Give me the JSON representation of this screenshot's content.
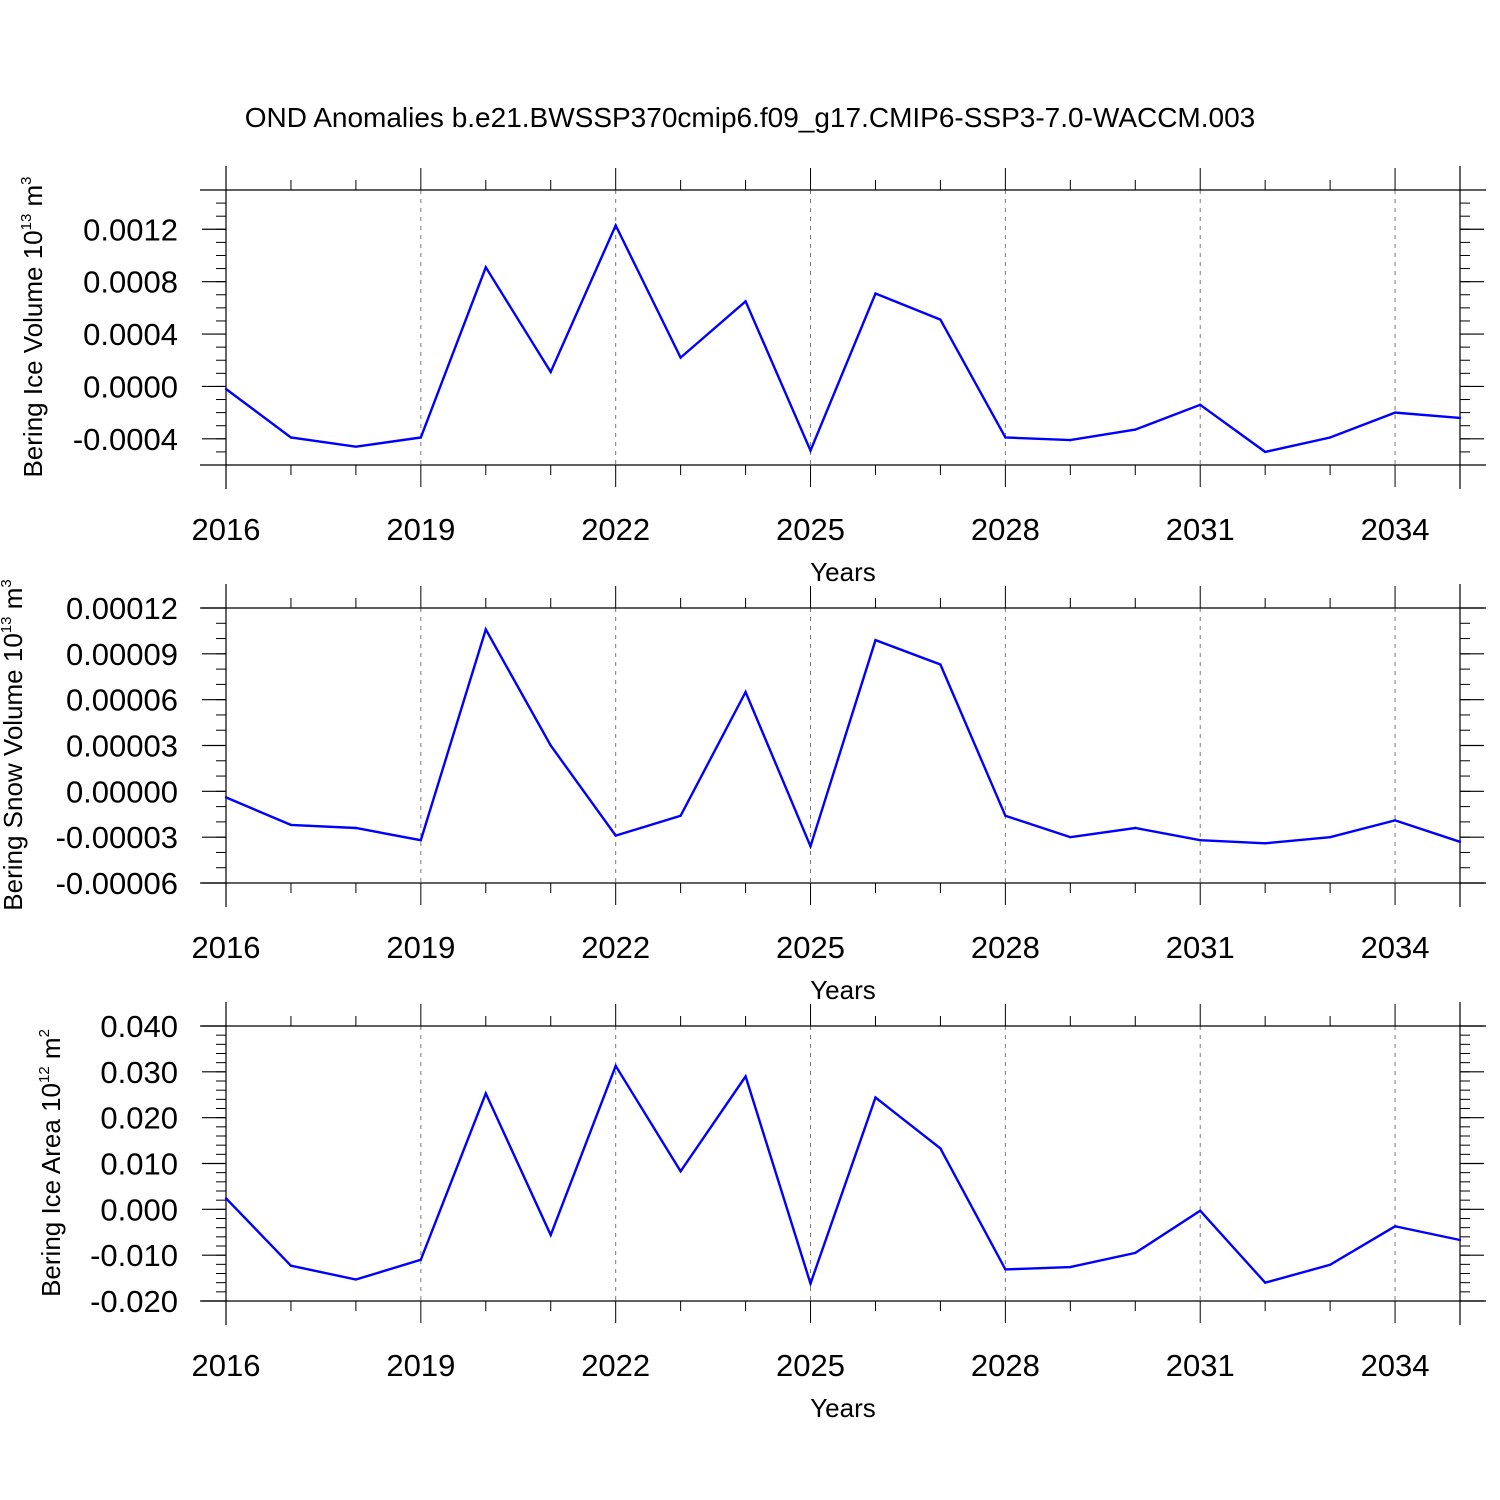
{
  "title": "OND Anomalies b.e21.BWSSP370cmip6.f09_g17.CMIP6-SSP3-7.0-WACCM.003",
  "chart_data": [
    {
      "type": "line",
      "ylabel": "Bering Ice Volume 10",
      "ylabel_exp": "13",
      "ylabel_unit": " m",
      "ylabel_unit_exp": "3",
      "xlabel": "Years",
      "xlim": [
        2016,
        2035
      ],
      "ylim": [
        -0.0006,
        0.0015
      ],
      "yticks": [
        -0.0004,
        0,
        0.0004,
        0.0008,
        0.0012
      ],
      "ytick_labels": [
        "-0.0004",
        "0.0000",
        "0.0004",
        "0.0008",
        "0.0012"
      ],
      "yminor_step": 0.0001,
      "xticks": [
        2016,
        2019,
        2022,
        2025,
        2028,
        2031,
        2034
      ],
      "xtick_labels": [
        "2016",
        "2019",
        "2022",
        "2025",
        "2028",
        "2031",
        "2034"
      ],
      "grid": "vertical dashed at major x ticks",
      "color": "#0000ff",
      "x": [
        2016,
        2017,
        2018,
        2019,
        2020,
        2021,
        2022,
        2023,
        2024,
        2025,
        2026,
        2027,
        2028,
        2029,
        2030,
        2031,
        2032,
        2033,
        2034,
        2035
      ],
      "values": [
        -2e-05,
        -0.00039,
        -0.00046,
        -0.00039,
        0.00091,
        0.00011,
        0.00123,
        0.00022,
        0.00065,
        -0.00049,
        0.00071,
        0.00051,
        -0.00039,
        -0.00041,
        -0.00033,
        -0.00014,
        -0.0005,
        -0.00039,
        -0.0002,
        -0.00024
      ]
    },
    {
      "type": "line",
      "ylabel": "Bering Snow Volume 10",
      "ylabel_exp": "13",
      "ylabel_unit": " m",
      "ylabel_unit_exp": "3",
      "xlabel": "Years",
      "xlim": [
        2016,
        2035
      ],
      "ylim": [
        -6e-05,
        0.00012
      ],
      "yticks": [
        -6e-05,
        -3e-05,
        0,
        3e-05,
        6e-05,
        9e-05,
        0.00012
      ],
      "ytick_labels": [
        "-0.00006",
        "-0.00003",
        "0.00000",
        "0.00003",
        "0.00006",
        "0.00009",
        "0.00012"
      ],
      "yminor_step": 1e-05,
      "xticks": [
        2016,
        2019,
        2022,
        2025,
        2028,
        2031,
        2034
      ],
      "xtick_labels": [
        "2016",
        "2019",
        "2022",
        "2025",
        "2028",
        "2031",
        "2034"
      ],
      "grid": "vertical dashed at major x ticks",
      "color": "#0000ff",
      "x": [
        2016,
        2017,
        2018,
        2019,
        2020,
        2021,
        2022,
        2023,
        2024,
        2025,
        2026,
        2027,
        2028,
        2029,
        2030,
        2031,
        2032,
        2033,
        2034,
        2035
      ],
      "values": [
        -4e-06,
        -2.2e-05,
        -2.4e-05,
        -3.2e-05,
        0.000106,
        3e-05,
        -2.9e-05,
        -1.6e-05,
        6.5e-05,
        -3.6e-05,
        9.9e-05,
        8.3e-05,
        -1.6e-05,
        -3e-05,
        -2.4e-05,
        -3.2e-05,
        -3.4e-05,
        -3e-05,
        -1.9e-05,
        -3.3e-05
      ]
    },
    {
      "type": "line",
      "ylabel": "Bering Ice Area 10",
      "ylabel_exp": "12",
      "ylabel_unit": " m",
      "ylabel_unit_exp": "2",
      "xlabel": "Years",
      "xlim": [
        2016,
        2035
      ],
      "ylim": [
        -0.02,
        0.04
      ],
      "yticks": [
        -0.02,
        -0.01,
        0,
        0.01,
        0.02,
        0.03,
        0.04
      ],
      "ytick_labels": [
        "-0.020",
        "-0.010",
        "0.000",
        "0.010",
        "0.020",
        "0.030",
        "0.040"
      ],
      "yminor_step": 0.002,
      "xticks": [
        2016,
        2019,
        2022,
        2025,
        2028,
        2031,
        2034
      ],
      "xtick_labels": [
        "2016",
        "2019",
        "2022",
        "2025",
        "2028",
        "2031",
        "2034"
      ],
      "grid": "vertical dashed at major x ticks",
      "color": "#0000ff",
      "x": [
        2016,
        2017,
        2018,
        2019,
        2020,
        2021,
        2022,
        2023,
        2024,
        2025,
        2026,
        2027,
        2028,
        2029,
        2030,
        2031,
        2032,
        2033,
        2034,
        2035
      ],
      "values": [
        0.0024,
        -0.0123,
        -0.0153,
        -0.011,
        0.0253,
        -0.0056,
        0.0313,
        0.0083,
        0.029,
        -0.0162,
        0.0244,
        0.0133,
        -0.0131,
        -0.0126,
        -0.0095,
        -0.0003,
        -0.016,
        -0.0121,
        -0.0037,
        -0.0067
      ]
    }
  ]
}
